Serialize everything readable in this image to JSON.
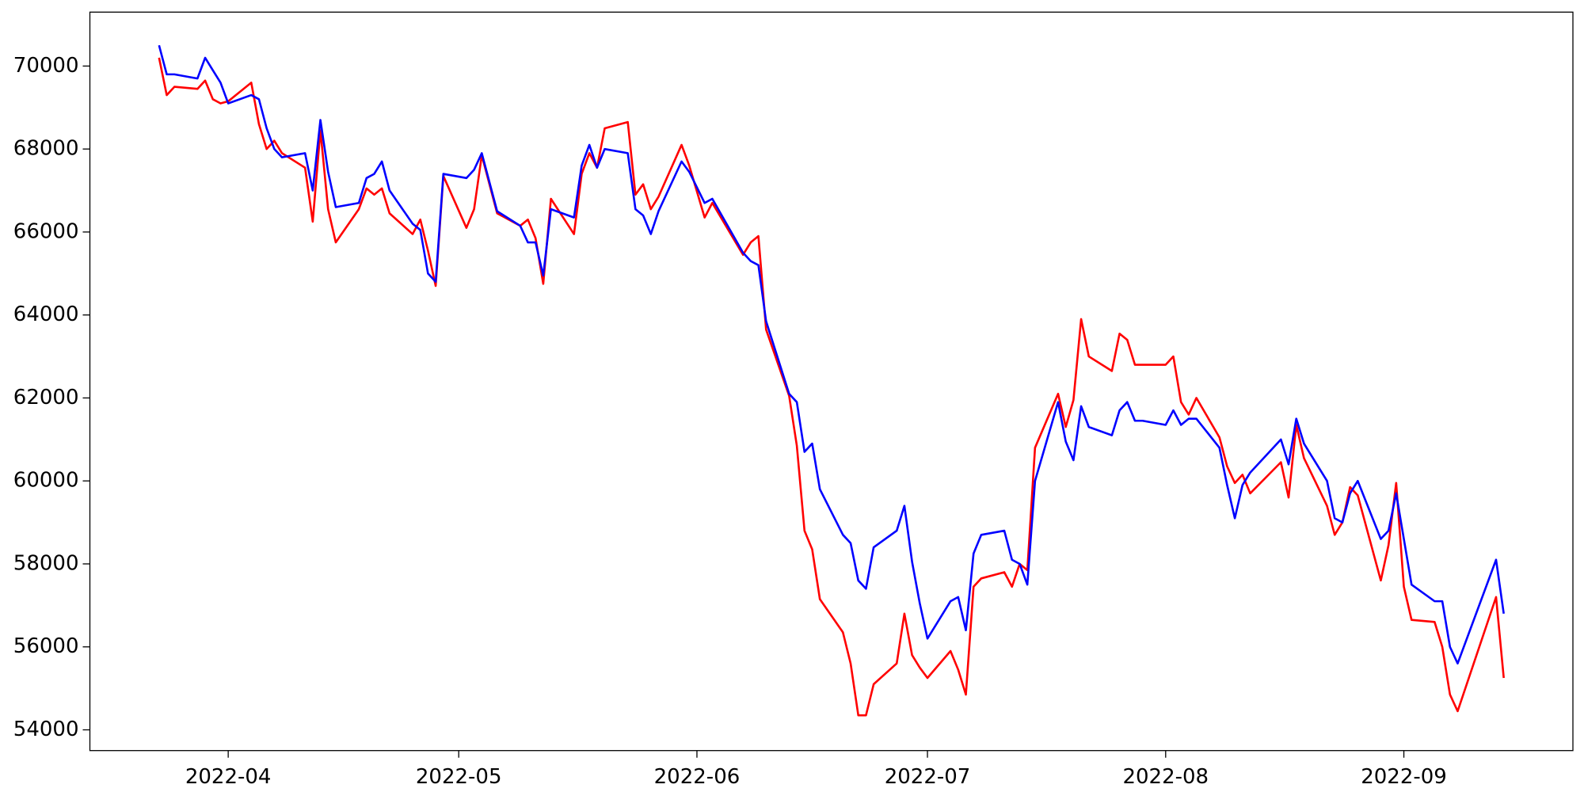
{
  "chart_data": {
    "type": "line",
    "x": [
      "2022-03-23",
      "2022-03-24",
      "2022-03-25",
      "2022-03-28",
      "2022-03-29",
      "2022-03-30",
      "2022-03-31",
      "2022-04-01",
      "2022-04-04",
      "2022-04-05",
      "2022-04-06",
      "2022-04-07",
      "2022-04-08",
      "2022-04-11",
      "2022-04-12",
      "2022-04-13",
      "2022-04-14",
      "2022-04-15",
      "2022-04-18",
      "2022-04-19",
      "2022-04-20",
      "2022-04-21",
      "2022-04-22",
      "2022-04-25",
      "2022-04-26",
      "2022-04-27",
      "2022-04-28",
      "2022-04-29",
      "2022-05-02",
      "2022-05-03",
      "2022-05-04",
      "2022-05-06",
      "2022-05-09",
      "2022-05-10",
      "2022-05-11",
      "2022-05-12",
      "2022-05-13",
      "2022-05-16",
      "2022-05-17",
      "2022-05-18",
      "2022-05-19",
      "2022-05-20",
      "2022-05-23",
      "2022-05-24",
      "2022-05-25",
      "2022-05-26",
      "2022-05-27",
      "2022-05-30",
      "2022-05-31",
      "2022-06-02",
      "2022-06-03",
      "2022-06-07",
      "2022-06-08",
      "2022-06-09",
      "2022-06-10",
      "2022-06-13",
      "2022-06-14",
      "2022-06-15",
      "2022-06-16",
      "2022-06-17",
      "2022-06-20",
      "2022-06-21",
      "2022-06-22",
      "2022-06-23",
      "2022-06-24",
      "2022-06-27",
      "2022-06-28",
      "2022-06-29",
      "2022-06-30",
      "2022-07-01",
      "2022-07-04",
      "2022-07-05",
      "2022-07-06",
      "2022-07-07",
      "2022-07-08",
      "2022-07-11",
      "2022-07-12",
      "2022-07-13",
      "2022-07-14",
      "2022-07-15",
      "2022-07-18",
      "2022-07-19",
      "2022-07-20",
      "2022-07-21",
      "2022-07-22",
      "2022-07-25",
      "2022-07-26",
      "2022-07-27",
      "2022-07-28",
      "2022-07-29",
      "2022-08-01",
      "2022-08-02",
      "2022-08-03",
      "2022-08-04",
      "2022-08-05",
      "2022-08-08",
      "2022-08-09",
      "2022-08-10",
      "2022-08-11",
      "2022-08-12",
      "2022-08-16",
      "2022-08-17",
      "2022-08-18",
      "2022-08-19",
      "2022-08-22",
      "2022-08-23",
      "2022-08-24",
      "2022-08-25",
      "2022-08-26",
      "2022-08-29",
      "2022-08-30",
      "2022-08-31",
      "2022-09-01",
      "2022-09-02",
      "2022-09-05",
      "2022-09-06",
      "2022-09-07",
      "2022-09-08",
      "2022-09-13",
      "2022-09-14"
    ],
    "series": [
      {
        "color": "#ff0000",
        "values": [
          70200,
          69300,
          69500,
          69450,
          69650,
          69200,
          69100,
          69150,
          69600,
          68600,
          68000,
          68200,
          67900,
          67550,
          66250,
          68450,
          66550,
          65750,
          66550,
          67050,
          66900,
          67050,
          66450,
          65950,
          66300,
          65550,
          64700,
          67350,
          66100,
          66550,
          67850,
          66450,
          66150,
          66300,
          65850,
          64750,
          66800,
          65950,
          67400,
          67900,
          67550,
          68500,
          68650,
          66900,
          67150,
          66550,
          66850,
          68100,
          67600,
          66350,
          66700,
          65450,
          65750,
          65900,
          63650,
          62050,
          60850,
          58800,
          58350,
          57150,
          56350,
          55600,
          54350,
          54350,
          55100,
          55600,
          56800,
          55800,
          55500,
          55250,
          55900,
          55450,
          54850,
          57450,
          57650,
          57800,
          57450,
          58000,
          57850,
          60800,
          62100,
          61300,
          61950,
          63900,
          63000,
          62650,
          63550,
          63400,
          62800,
          62800,
          62800,
          63000,
          61900,
          61600,
          62000,
          61050,
          60350,
          59950,
          60150,
          59700,
          60450,
          59600,
          61350,
          60550,
          59400,
          58700,
          59000,
          59850,
          59650,
          57600,
          58450,
          59950,
          57450,
          56650,
          56600,
          56000,
          54850,
          54450,
          57200,
          55250
        ]
      },
      {
        "color": "#0000ff",
        "values": [
          70500,
          69800,
          69800,
          69700,
          70200,
          69900,
          69600,
          69100,
          69300,
          69200,
          68500,
          68000,
          67800,
          67900,
          67000,
          68700,
          67450,
          66600,
          66700,
          67300,
          67400,
          67700,
          67000,
          66200,
          66050,
          65000,
          64800,
          67400,
          67300,
          67500,
          67900,
          66500,
          66150,
          65750,
          65750,
          64950,
          66550,
          66350,
          67600,
          68100,
          67550,
          68000,
          67900,
          66550,
          66400,
          65950,
          66500,
          67700,
          67450,
          66700,
          66800,
          65500,
          65300,
          65200,
          63850,
          62100,
          61900,
          60700,
          60900,
          59800,
          58700,
          58500,
          57600,
          57400,
          58400,
          58800,
          59400,
          58050,
          57050,
          56200,
          57100,
          57200,
          56400,
          58250,
          58700,
          58800,
          58100,
          58000,
          57500,
          60000,
          61900,
          60950,
          60500,
          61800,
          61300,
          61100,
          61700,
          61900,
          61450,
          61450,
          61350,
          61700,
          61350,
          61500,
          61500,
          60800,
          59900,
          59100,
          59900,
          60200,
          61000,
          60400,
          61500,
          60900,
          60000,
          59100,
          59000,
          59700,
          60000,
          58600,
          58800,
          59700,
          58600,
          57500,
          57100,
          57100,
          56000,
          55600,
          58100,
          56800
        ]
      }
    ],
    "xlim": [
      "2022-03-14",
      "2022-09-23"
    ],
    "xticks": [
      {
        "value": "2022-04-01",
        "label": "2022-04"
      },
      {
        "value": "2022-05-01",
        "label": "2022-05"
      },
      {
        "value": "2022-06-01",
        "label": "2022-06"
      },
      {
        "value": "2022-07-01",
        "label": "2022-07"
      },
      {
        "value": "2022-08-01",
        "label": "2022-08"
      },
      {
        "value": "2022-09-01",
        "label": "2022-09"
      }
    ],
    "ylim": [
      53500,
      71300
    ],
    "yticks": [
      54000,
      56000,
      58000,
      60000,
      62000,
      64000,
      66000,
      68000,
      70000
    ],
    "grid": false
  }
}
